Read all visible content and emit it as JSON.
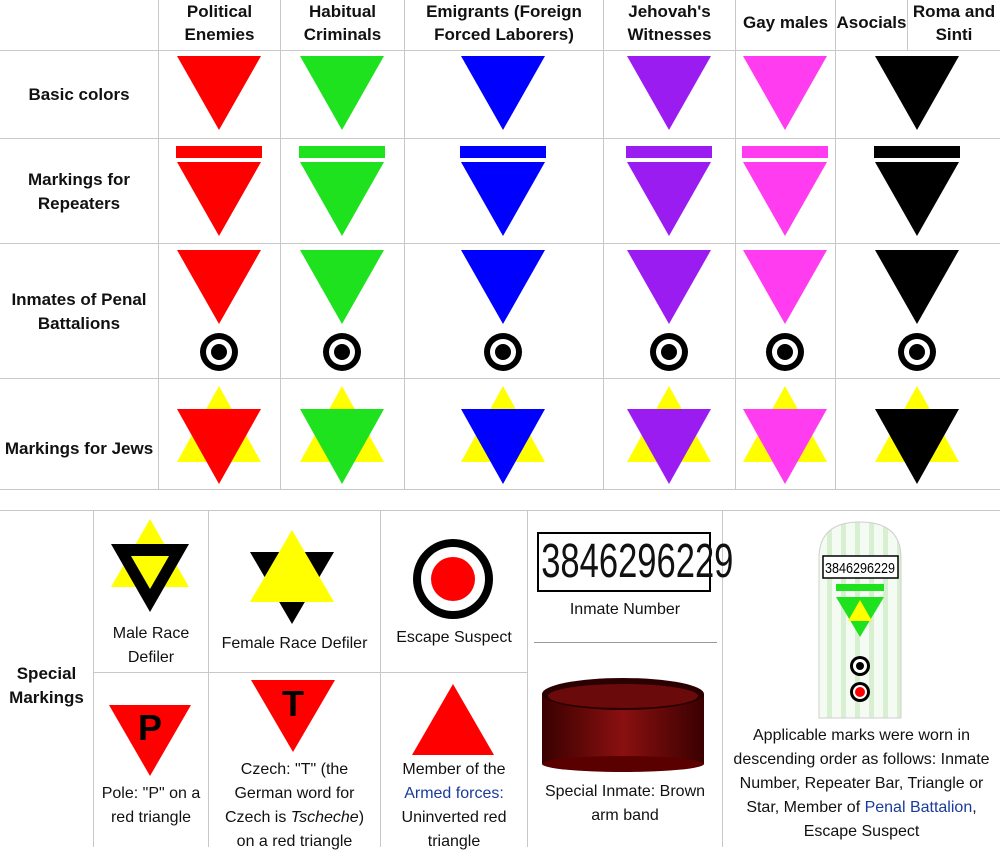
{
  "top_table": {
    "columns": [
      {
        "line1": "Political",
        "line2": "Enemies",
        "color": "#ff0000"
      },
      {
        "line1": "Habitual",
        "line2": "Criminals",
        "color": "#1ee21e"
      },
      {
        "line1": "Emigrants (Foreign",
        "line2": "Forced Laborers)",
        "color": "#0000ff"
      },
      {
        "line1": "Jehovah's",
        "line2": "Witnesses",
        "color": "#9b1cf0"
      },
      {
        "line1": "Gay males",
        "line2": "",
        "color": "#ff3cf0"
      },
      {
        "line1": "Asocials",
        "line2": "",
        "color": "#000000"
      },
      {
        "line1": "Roma and",
        "line2": "Sinti",
        "color": "#000000"
      }
    ],
    "rows": [
      {
        "line1": "Basic colors",
        "line2": ""
      },
      {
        "line1": "Markings for",
        "line2": "Repeaters"
      },
      {
        "line1": "Inmates of Penal",
        "line2": "Battalions"
      },
      {
        "line1": "Markings for Jews",
        "line2": ""
      }
    ]
  },
  "special": {
    "label1": "Special",
    "label2": "Markings",
    "male_defiler": {
      "line1": "Male Race",
      "line2": "Defiler"
    },
    "female_defiler": {
      "line1": "Female Race Defiler"
    },
    "escape": {
      "line1": "Escape Suspect"
    },
    "inmate_number": {
      "number": "3846296229",
      "caption": "Inmate Number"
    },
    "pole": {
      "letter": "P",
      "line1": "Pole: \"P\" on a",
      "line2": "red triangle"
    },
    "czech": {
      "letter": "T",
      "line1": "Czech: \"T\" (the",
      "line2": "German word for",
      "line3a": "Czech is ",
      "line3b": "Tscheche",
      "line3c": ")",
      "line4": "on a red triangle"
    },
    "armed": {
      "line1": "Member of the",
      "line2": "Armed forces:",
      "line3": "Uninverted red",
      "line4": "triangle"
    },
    "armband": {
      "line1": "Special Inmate: Brown",
      "line2": "arm band"
    },
    "uniform": {
      "number": "3846296229",
      "line1": "Applicable marks were worn in",
      "line2": "descending order as follows: Inmate",
      "line3": "Number, Repeater Bar, Triangle or",
      "line4a": "Star, Member of ",
      "line4b": "Penal Battalion",
      "line4c": ",",
      "line5": "Escape Suspect"
    }
  },
  "colors": {
    "red": "#ff0000",
    "green": "#1ee21e",
    "blue": "#0000ff",
    "purple": "#9b1cf0",
    "pink": "#ff3cf0",
    "black": "#000000",
    "yellow": "#ffff00",
    "brown": "#7a0000",
    "link": "#1a3b9a"
  }
}
